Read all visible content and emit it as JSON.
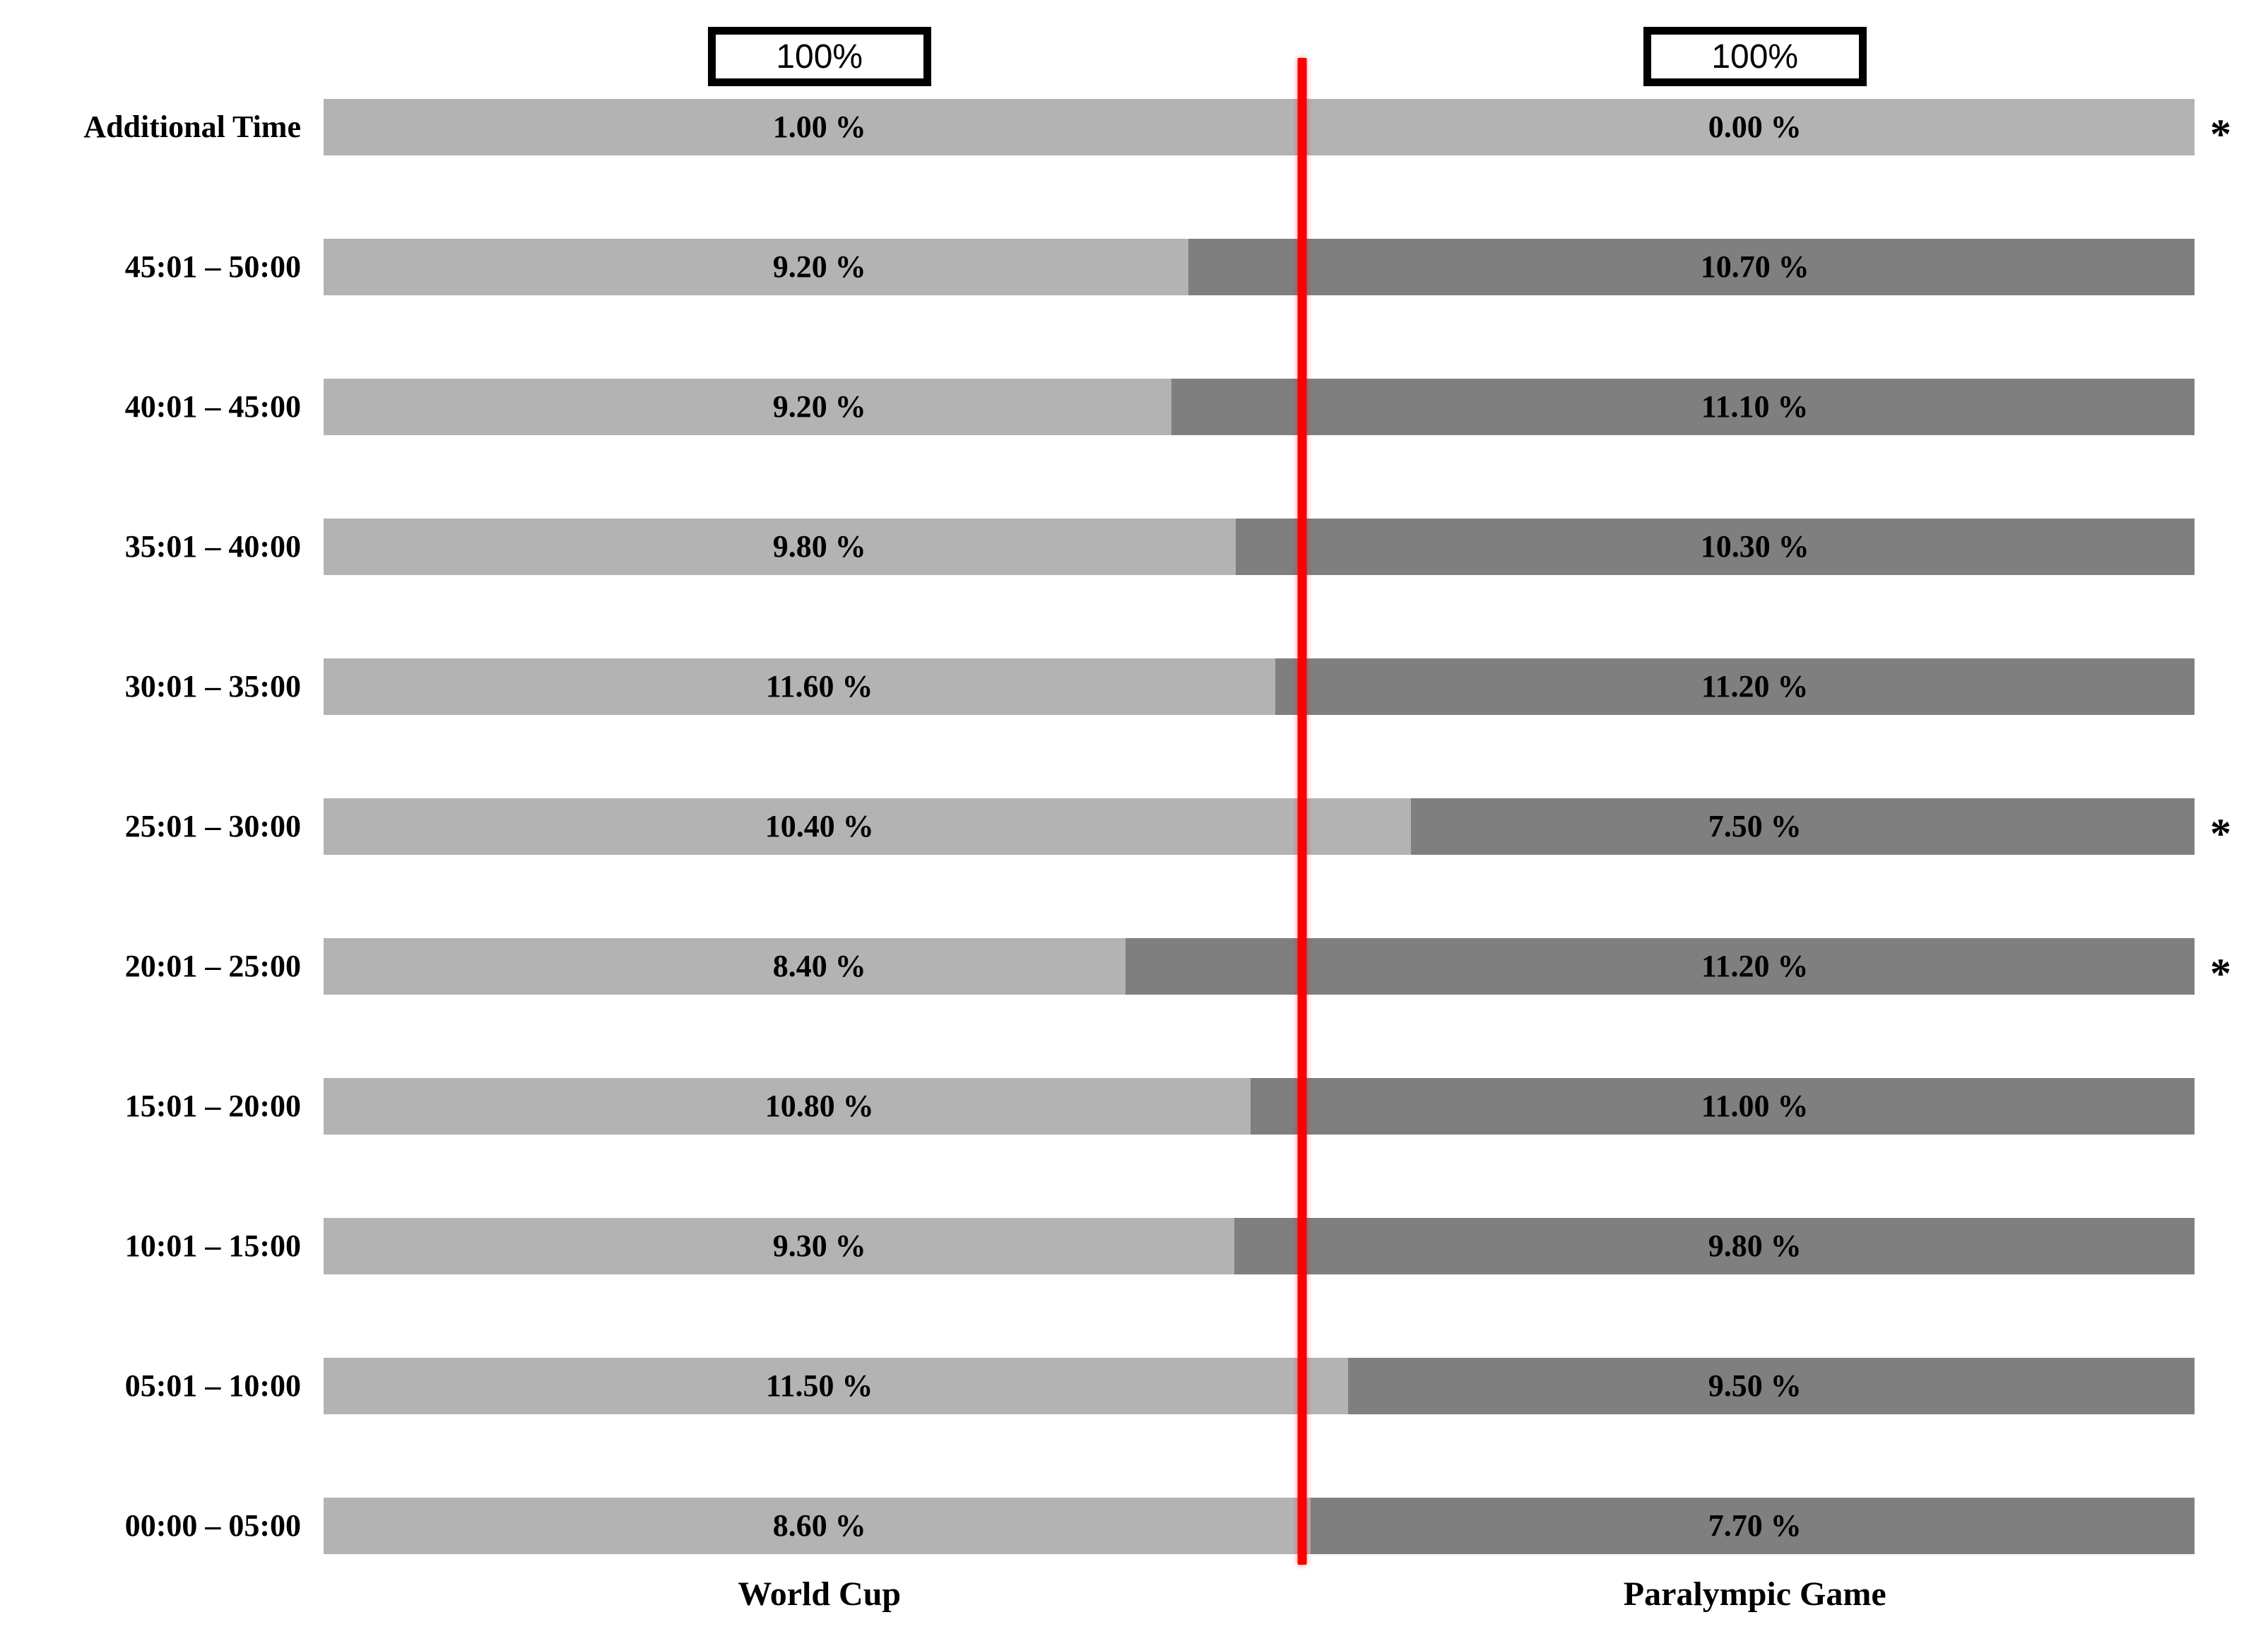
{
  "chart_data": {
    "type": "bar",
    "subtype": "horizontal-100pct-stacked-comparison",
    "orientation": "horizontal",
    "categories": [
      "Additional Time",
      "45:01 – 50:00",
      "40:01 – 45:00",
      "35:01 – 40:00",
      "30:01 – 35:00",
      "25:01 – 30:00",
      "20:01 – 25:00",
      "15:01 – 20:00",
      "10:01 – 15:00",
      "05:01 – 10:00",
      "00:00 – 05:00"
    ],
    "series": [
      {
        "name": "World Cup",
        "values": [
          1.0,
          9.2,
          9.2,
          9.8,
          11.6,
          10.4,
          8.4,
          10.8,
          9.3,
          11.5,
          8.6
        ]
      },
      {
        "name": "Paralympic Game",
        "values": [
          0.0,
          10.7,
          11.1,
          10.3,
          11.2,
          7.5,
          11.2,
          11.0,
          9.8,
          9.5,
          7.7
        ]
      }
    ],
    "value_suffix": " %",
    "asterisk": [
      true,
      false,
      false,
      false,
      false,
      true,
      true,
      false,
      false,
      false,
      false
    ],
    "significance_marker": "*",
    "axis_labels": {
      "left": "100%",
      "right": "100%"
    },
    "legend_position": "bottom",
    "grid": false,
    "colors": {
      "world_cup_bar": "#b3b3b3",
      "paralympic_bar": "#7f7f7f",
      "divider_line": "#fb0000",
      "text": "#000000",
      "axis_box_border": "#000000",
      "background": "#ffffff"
    }
  }
}
